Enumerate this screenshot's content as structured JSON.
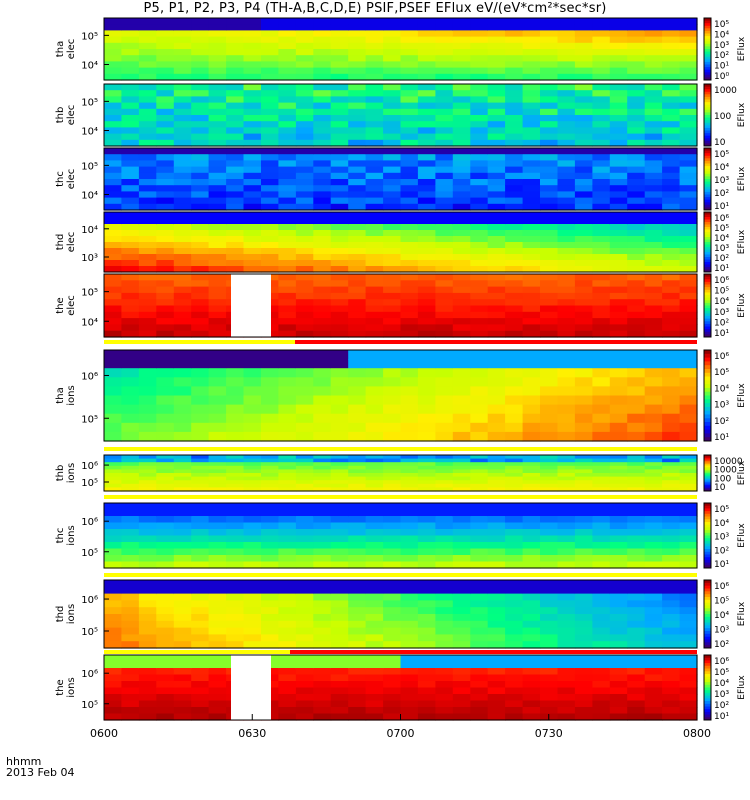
{
  "title": "P5, P1, P2, P3, P4 (TH-A,B,C,D,E) PSIF,PSEF EFlux eV/(eV*cm²*sec*sr)",
  "footer": {
    "unit": "hhmm",
    "date": "2013 Feb 04"
  },
  "chart_data": {
    "type": "heatmap",
    "x_ticks": [
      "0600",
      "0630",
      "0700",
      "0730",
      "0800"
    ],
    "xlim": [
      "0600",
      "0800"
    ],
    "panels": [
      {
        "label1": "tha",
        "label2": "elec",
        "y_ticks": [
          "10⁵",
          "10⁴"
        ],
        "cbar_title": "EFlux",
        "cbar_ticks": [
          "10⁵",
          "10⁴",
          "10³",
          "10²",
          "10¹",
          "10⁰"
        ],
        "bar": false
      },
      {
        "label1": "thb",
        "label2": "elec",
        "y_ticks": [
          "10⁵",
          "10⁴"
        ],
        "cbar_title": "EFlux",
        "cbar_ticks": [
          "1000",
          "100",
          "10"
        ],
        "bar": false
      },
      {
        "label1": "thc",
        "label2": "elec",
        "y_ticks": [
          "10⁵",
          "10⁴"
        ],
        "cbar_title": "EFlux",
        "cbar_ticks": [
          "10⁵",
          "10⁴",
          "10³",
          "10²",
          "10¹"
        ],
        "bar": false
      },
      {
        "label1": "thd",
        "label2": "elec",
        "y_ticks": [
          "10⁴",
          "10³"
        ],
        "cbar_title": "EFlux",
        "cbar_ticks": [
          "10⁶",
          "10⁵",
          "10⁴",
          "10³",
          "10²",
          "10¹"
        ],
        "bar": false
      },
      {
        "label1": "the",
        "label2": "elec",
        "y_ticks": [
          "10⁵",
          "10⁴"
        ],
        "cbar_title": "EFlux",
        "cbar_ticks": [
          "10⁶",
          "10⁵",
          "10⁴",
          "10³",
          "10²",
          "10¹"
        ],
        "bar": true
      },
      {
        "label1": "tha",
        "label2": "ions",
        "y_ticks": [
          "10⁶",
          "10⁵"
        ],
        "cbar_title": "EFlux",
        "cbar_ticks": [
          "10⁶",
          "10⁵",
          "10⁴",
          "10³",
          "10²",
          "10¹"
        ],
        "bar": true
      },
      {
        "label1": "thb",
        "label2": "ions",
        "y_ticks": [
          "10⁶",
          "10⁵"
        ],
        "cbar_title": "EFlux",
        "cbar_ticks": [
          "10000",
          "1000",
          "100",
          "10"
        ],
        "bar": true
      },
      {
        "label1": "thc",
        "label2": "ions",
        "y_ticks": [
          "10⁶",
          "10⁵"
        ],
        "cbar_title": "EFlux",
        "cbar_ticks": [
          "10⁵",
          "10⁴",
          "10³",
          "10²",
          "10¹"
        ],
        "bar": true
      },
      {
        "label1": "thd",
        "label2": "ions",
        "y_ticks": [
          "10⁶",
          "10⁵"
        ],
        "cbar_title": "EFlux",
        "cbar_ticks": [
          "10⁶",
          "10⁵",
          "10⁴",
          "10³",
          "10²"
        ],
        "bar": true
      },
      {
        "label1": "the",
        "label2": "ions",
        "y_ticks": [
          "10⁶",
          "10⁵"
        ],
        "cbar_title": "EFlux",
        "cbar_ticks": [
          "10⁶",
          "10⁵",
          "10⁴",
          "10³",
          "10²",
          "10¹"
        ],
        "bar": false
      }
    ]
  }
}
